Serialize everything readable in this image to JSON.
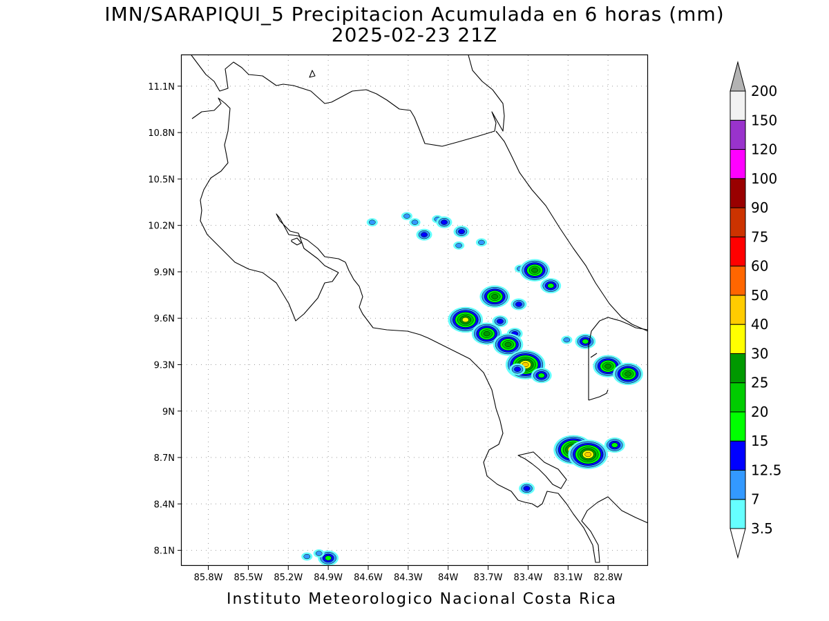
{
  "title": {
    "line1": "IMN/SARAPIQUI_5 Precipitacion Acumulada en 6 horas (mm)",
    "line2": "2025-02-23 21Z"
  },
  "footer": "Instituto Meteorologico Nacional Costa Rica",
  "map": {
    "lon_range": [
      -86.0,
      -82.5
    ],
    "lat_range": [
      8.0,
      11.3
    ],
    "lon_ticks": [
      {
        "value": -85.8,
        "label": "85.8W"
      },
      {
        "value": -85.5,
        "label": "85.5W"
      },
      {
        "value": -85.2,
        "label": "85.2W"
      },
      {
        "value": -84.9,
        "label": "84.9W"
      },
      {
        "value": -84.6,
        "label": "84.6W"
      },
      {
        "value": -84.3,
        "label": "84.3W"
      },
      {
        "value": -84.0,
        "label": "84W"
      },
      {
        "value": -83.7,
        "label": "83.7W"
      },
      {
        "value": -83.4,
        "label": "83.4W"
      },
      {
        "value": -83.1,
        "label": "83.1W"
      },
      {
        "value": -82.8,
        "label": "82.8W"
      }
    ],
    "lat_ticks": [
      {
        "value": 8.1,
        "label": "8.1N"
      },
      {
        "value": 8.4,
        "label": "8.4N"
      },
      {
        "value": 8.7,
        "label": "8.7N"
      },
      {
        "value": 9.0,
        "label": "9N"
      },
      {
        "value": 9.3,
        "label": "9.3N"
      },
      {
        "value": 9.6,
        "label": "9.6N"
      },
      {
        "value": 9.9,
        "label": "9.9N"
      },
      {
        "value": 10.2,
        "label": "10.2N"
      },
      {
        "value": 10.5,
        "label": "10.5N"
      },
      {
        "value": 10.8,
        "label": "10.8N"
      },
      {
        "value": 11.1,
        "label": "11.1N"
      }
    ],
    "grid": "dotted",
    "border_color": "#000000"
  },
  "colorbar": {
    "orientation": "vertical",
    "levels": [
      {
        "label": "3.5",
        "color": "#66ffff"
      },
      {
        "label": "7",
        "color": "#3399ff"
      },
      {
        "label": "12.5",
        "color": "#0000ff"
      },
      {
        "label": "15",
        "color": "#00ff00"
      },
      {
        "label": "20",
        "color": "#00cc00"
      },
      {
        "label": "25",
        "color": "#009900"
      },
      {
        "label": "30",
        "color": "#ffff00"
      },
      {
        "label": "40",
        "color": "#ffcc00"
      },
      {
        "label": "50",
        "color": "#ff6600"
      },
      {
        "label": "60",
        "color": "#ff0000"
      },
      {
        "label": "75",
        "color": "#cc3300"
      },
      {
        "label": "90",
        "color": "#990000"
      },
      {
        "label": "100",
        "color": "#ff00ff"
      },
      {
        "label": "120",
        "color": "#9933cc"
      },
      {
        "label": "150",
        "color": "#f2f2f2"
      },
      {
        "label": "200",
        "color": "#b3b3b3"
      }
    ],
    "bottom_cap_color": "#ffffff",
    "top_cap_color": "#b3b3b3"
  },
  "precip_cells": [
    {
      "lon": -84.31,
      "lat": 10.26,
      "level": 1
    },
    {
      "lon": -84.25,
      "lat": 10.22,
      "level": 1
    },
    {
      "lon": -84.57,
      "lat": 10.22,
      "level": 1
    },
    {
      "lon": -84.08,
      "lat": 10.24,
      "level": 1
    },
    {
      "lon": -84.03,
      "lat": 10.22,
      "level": 2
    },
    {
      "lon": -84.18,
      "lat": 10.14,
      "level": 2
    },
    {
      "lon": -83.9,
      "lat": 10.16,
      "level": 2
    },
    {
      "lon": -83.92,
      "lat": 10.07,
      "level": 1
    },
    {
      "lon": -83.75,
      "lat": 10.09,
      "level": 1
    },
    {
      "lon": -83.46,
      "lat": 9.92,
      "level": 1
    },
    {
      "lon": -83.35,
      "lat": 9.91,
      "level": 5
    },
    {
      "lon": -83.23,
      "lat": 9.81,
      "level": 3
    },
    {
      "lon": -83.65,
      "lat": 9.74,
      "level": 5
    },
    {
      "lon": -83.47,
      "lat": 9.69,
      "level": 2
    },
    {
      "lon": -83.87,
      "lat": 9.59,
      "level": 6
    },
    {
      "lon": -83.61,
      "lat": 9.58,
      "level": 2
    },
    {
      "lon": -83.71,
      "lat": 9.5,
      "level": 5
    },
    {
      "lon": -83.5,
      "lat": 9.5,
      "level": 2
    },
    {
      "lon": -83.55,
      "lat": 9.43,
      "level": 5
    },
    {
      "lon": -83.42,
      "lat": 9.3,
      "level": 7
    },
    {
      "lon": -83.48,
      "lat": 9.27,
      "level": 2
    },
    {
      "lon": -83.3,
      "lat": 9.23,
      "level": 3
    },
    {
      "lon": -83.11,
      "lat": 9.46,
      "level": 1
    },
    {
      "lon": -82.97,
      "lat": 9.45,
      "level": 3
    },
    {
      "lon": -82.8,
      "lat": 9.29,
      "level": 5
    },
    {
      "lon": -82.65,
      "lat": 9.24,
      "level": 5
    },
    {
      "lon": -83.06,
      "lat": 8.75,
      "level": 7
    },
    {
      "lon": -82.95,
      "lat": 8.72,
      "level": 7
    },
    {
      "lon": -82.75,
      "lat": 8.78,
      "level": 3
    },
    {
      "lon": -83.41,
      "lat": 8.5,
      "level": 2
    },
    {
      "lon": -84.9,
      "lat": 8.05,
      "level": 3
    },
    {
      "lon": -84.97,
      "lat": 8.08,
      "level": 1
    },
    {
      "lon": -85.06,
      "lat": 8.06,
      "level": 1
    }
  ]
}
